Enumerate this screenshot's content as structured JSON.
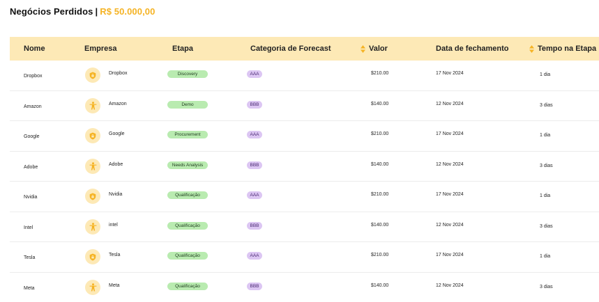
{
  "header": {
    "title": "Negócios Perdidos",
    "separator": "|",
    "amount": "R$ 50.000,00"
  },
  "colors": {
    "accent": "#f5b324",
    "header_bg": "#fde9b6",
    "stage_pill": "#b9ebb0",
    "category_pill": "#dcc6f3"
  },
  "table": {
    "columns": {
      "nome": "Nome",
      "empresa": "Empresa",
      "etapa": "Etapa",
      "categoria": "Categoria de Forecast",
      "valor": "Valor",
      "data": "Data de fechamento",
      "tempo": "Tempo na Etapa"
    },
    "rows": [
      {
        "nome": "Dropbox",
        "empresa": "Dropbox",
        "icon": "shield-icon",
        "etapa": "Discovery",
        "categoria": "AAA",
        "valor": "$210.00",
        "data": "17 Nov 2024",
        "tempo": "1 dia"
      },
      {
        "nome": "Amazon",
        "empresa": "Amazon",
        "icon": "person-icon",
        "etapa": "Demo",
        "categoria": "BBB",
        "valor": "$140.00",
        "data": "12 Nov 2024",
        "tempo": "3 dias"
      },
      {
        "nome": "Google",
        "empresa": "Google",
        "icon": "shield-icon",
        "etapa": "Procurement",
        "categoria": "AAA",
        "valor": "$210.00",
        "data": "17 Nov 2024",
        "tempo": "1 dia"
      },
      {
        "nome": "Adobe",
        "empresa": "Adobe",
        "icon": "person-icon",
        "etapa": "Needs Analysis",
        "categoria": "BBB",
        "valor": "$140.00",
        "data": "12 Nov 2024",
        "tempo": "3 dias"
      },
      {
        "nome": "Nvidia",
        "empresa": "Nvidia",
        "icon": "shield-icon",
        "etapa": "Qualificação",
        "categoria": "AAA",
        "valor": "$210.00",
        "data": "17 Nov 2024",
        "tempo": "1 dia"
      },
      {
        "nome": "Intel",
        "empresa": "intel",
        "icon": "person-icon",
        "etapa": "Qualificação",
        "categoria": "BBB",
        "valor": "$140.00",
        "data": "12 Nov 2024",
        "tempo": "3 dias"
      },
      {
        "nome": "Tesla",
        "empresa": "Tesla",
        "icon": "shield-icon",
        "etapa": "Qualificação",
        "categoria": "AAA",
        "valor": "$210.00",
        "data": "17 Nov 2024",
        "tempo": "1 dia"
      },
      {
        "nome": "Meta",
        "empresa": "Meta",
        "icon": "person-icon",
        "etapa": "Qualificação",
        "categoria": "BBB",
        "valor": "$140.00",
        "data": "12 Nov 2024",
        "tempo": "3 dias"
      }
    ]
  }
}
